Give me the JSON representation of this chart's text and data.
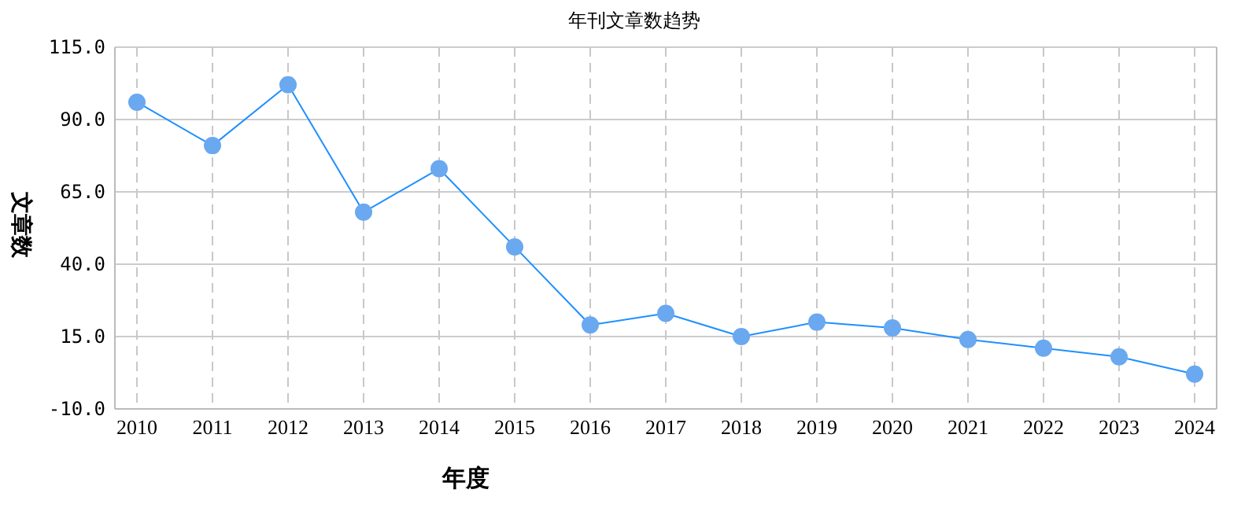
{
  "chart_data": {
    "type": "line",
    "title": "年刊文章数趋势",
    "xlabel": "年度",
    "ylabel": "文章数",
    "categories": [
      "2010",
      "2011",
      "2012",
      "2013",
      "2014",
      "2015",
      "2016",
      "2017",
      "2018",
      "2019",
      "2020",
      "2021",
      "2022",
      "2023",
      "2024"
    ],
    "series": [
      {
        "color": "#1e90ff",
        "values": [
          96,
          81,
          102,
          58,
          73,
          46,
          19,
          23,
          15,
          20,
          18,
          14,
          11,
          8,
          2
        ]
      }
    ],
    "ylim": [
      -10,
      115
    ],
    "yticks": [
      {
        "value": -10,
        "label": "-10.0"
      },
      {
        "value": 15,
        "label": "15.0"
      },
      {
        "value": 40,
        "label": "40.0"
      },
      {
        "value": 65,
        "label": "65.0"
      },
      {
        "value": 90,
        "label": "90.0"
      },
      {
        "value": 115,
        "label": "115.0"
      }
    ],
    "grid": true,
    "marker": "circle",
    "line_style": "solid"
  }
}
